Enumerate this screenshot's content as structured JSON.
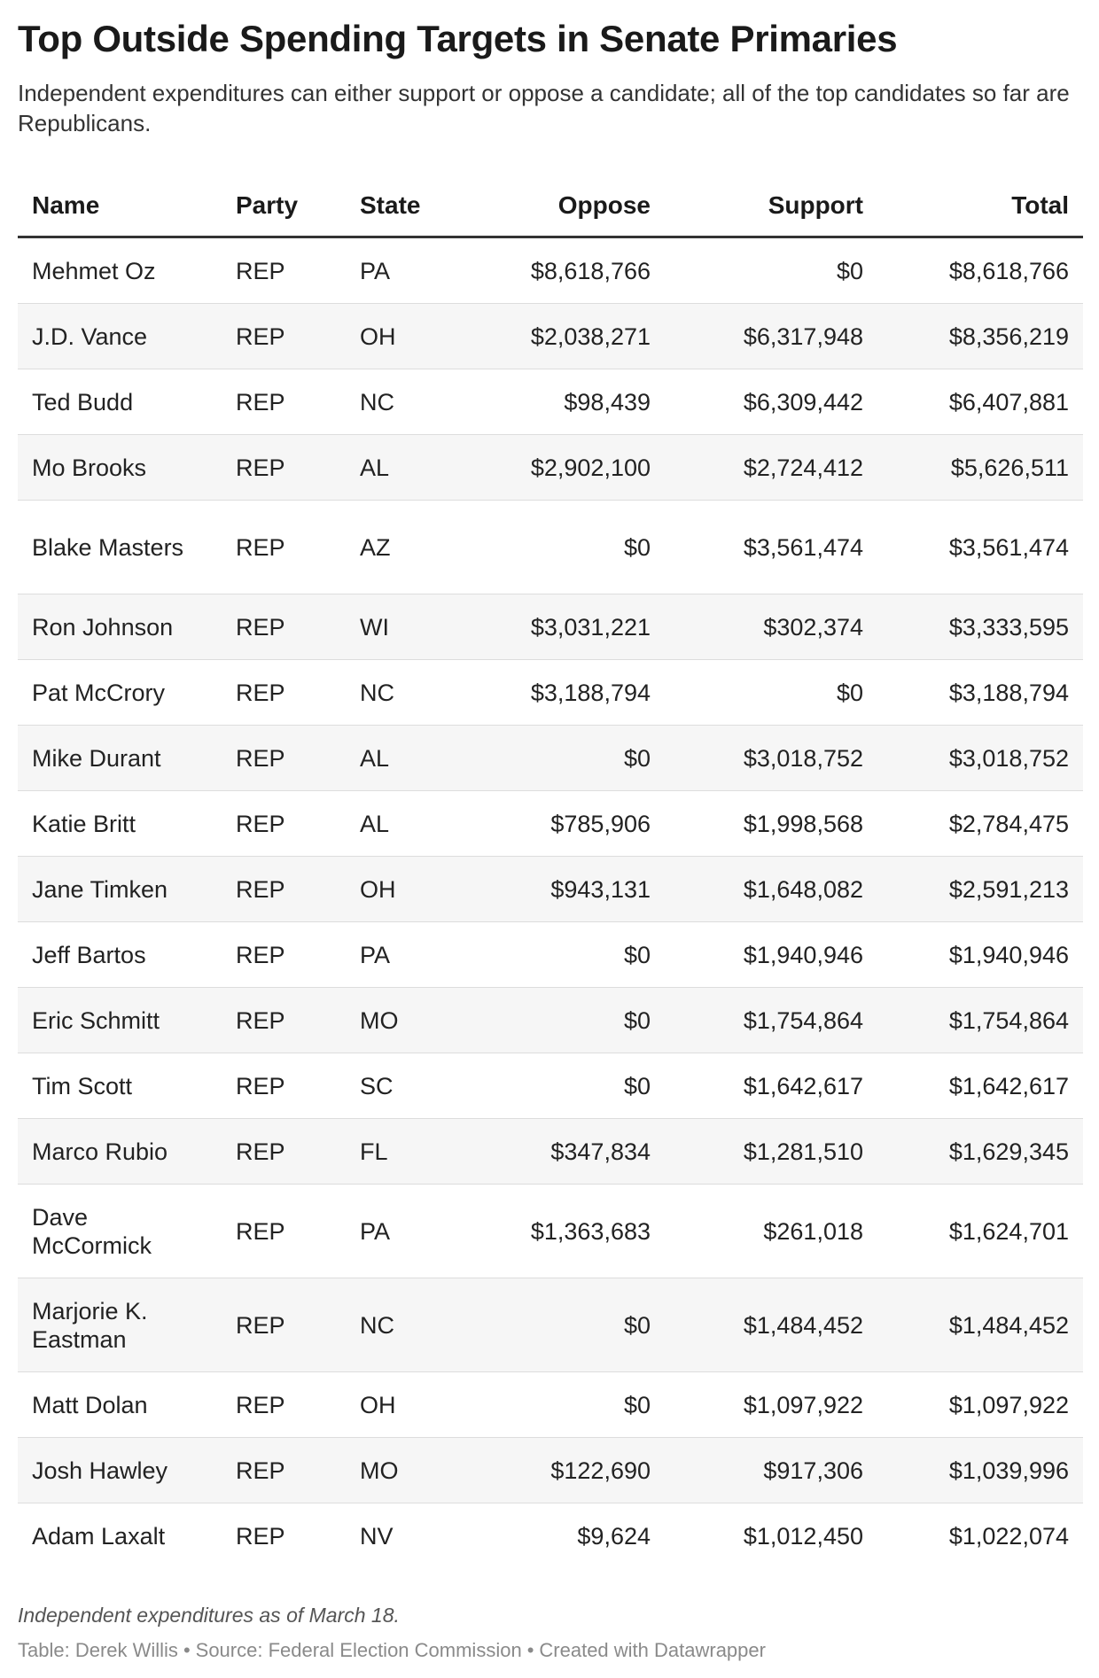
{
  "title": "Top Outside Spending Targets in Senate Primaries",
  "subtitle": "Independent expenditures can either support or oppose a candidate; all of the top candidates so far are Republicans.",
  "chart_data": {
    "type": "table",
    "columns": [
      "Name",
      "Party",
      "State",
      "Oppose",
      "Support",
      "Total"
    ],
    "rows": [
      {
        "name": "Mehmet Oz",
        "party": "REP",
        "state": "PA",
        "oppose": "$8,618,766",
        "support": "$0",
        "total": "$8,618,766"
      },
      {
        "name": "J.D. Vance",
        "party": "REP",
        "state": "OH",
        "oppose": "$2,038,271",
        "support": "$6,317,948",
        "total": "$8,356,219"
      },
      {
        "name": "Ted Budd",
        "party": "REP",
        "state": "NC",
        "oppose": "$98,439",
        "support": "$6,309,442",
        "total": "$6,407,881"
      },
      {
        "name": "Mo Brooks",
        "party": "REP",
        "state": "AL",
        "oppose": "$2,902,100",
        "support": "$2,724,412",
        "total": "$5,626,511"
      },
      {
        "name": "Blake Masters",
        "party": "REP",
        "state": "AZ",
        "oppose": "$0",
        "support": "$3,561,474",
        "total": "$3,561,474"
      },
      {
        "name": "Ron Johnson",
        "party": "REP",
        "state": "WI",
        "oppose": "$3,031,221",
        "support": "$302,374",
        "total": "$3,333,595"
      },
      {
        "name": "Pat McCrory",
        "party": "REP",
        "state": "NC",
        "oppose": "$3,188,794",
        "support": "$0",
        "total": "$3,188,794"
      },
      {
        "name": "Mike Durant",
        "party": "REP",
        "state": "AL",
        "oppose": "$0",
        "support": "$3,018,752",
        "total": "$3,018,752"
      },
      {
        "name": "Katie Britt",
        "party": "REP",
        "state": "AL",
        "oppose": "$785,906",
        "support": "$1,998,568",
        "total": "$2,784,475"
      },
      {
        "name": "Jane Timken",
        "party": "REP",
        "state": "OH",
        "oppose": "$943,131",
        "support": "$1,648,082",
        "total": "$2,591,213"
      },
      {
        "name": "Jeff Bartos",
        "party": "REP",
        "state": "PA",
        "oppose": "$0",
        "support": "$1,940,946",
        "total": "$1,940,946"
      },
      {
        "name": "Eric Schmitt",
        "party": "REP",
        "state": "MO",
        "oppose": "$0",
        "support": "$1,754,864",
        "total": "$1,754,864"
      },
      {
        "name": "Tim Scott",
        "party": "REP",
        "state": "SC",
        "oppose": "$0",
        "support": "$1,642,617",
        "total": "$1,642,617"
      },
      {
        "name": "Marco Rubio",
        "party": "REP",
        "state": "FL",
        "oppose": "$347,834",
        "support": "$1,281,510",
        "total": "$1,629,345"
      },
      {
        "name": "Dave McCormick",
        "party": "REP",
        "state": "PA",
        "oppose": "$1,363,683",
        "support": "$261,018",
        "total": "$1,624,701"
      },
      {
        "name": "Marjorie K. Eastman",
        "party": "REP",
        "state": "NC",
        "oppose": "$0",
        "support": "$1,484,452",
        "total": "$1,484,452"
      },
      {
        "name": "Matt Dolan",
        "party": "REP",
        "state": "OH",
        "oppose": "$0",
        "support": "$1,097,922",
        "total": "$1,097,922"
      },
      {
        "name": "Josh Hawley",
        "party": "REP",
        "state": "MO",
        "oppose": "$122,690",
        "support": "$917,306",
        "total": "$1,039,996"
      },
      {
        "name": "Adam Laxalt",
        "party": "REP",
        "state": "NV",
        "oppose": "$9,624",
        "support": "$1,012,450",
        "total": "$1,022,074"
      }
    ]
  },
  "note": "Independent expenditures as of March 18.",
  "byline": {
    "table": "Table: Derek Willis",
    "source": "Source: Federal Election Commission",
    "created": "Created with Datawrapper",
    "separator": "•"
  }
}
